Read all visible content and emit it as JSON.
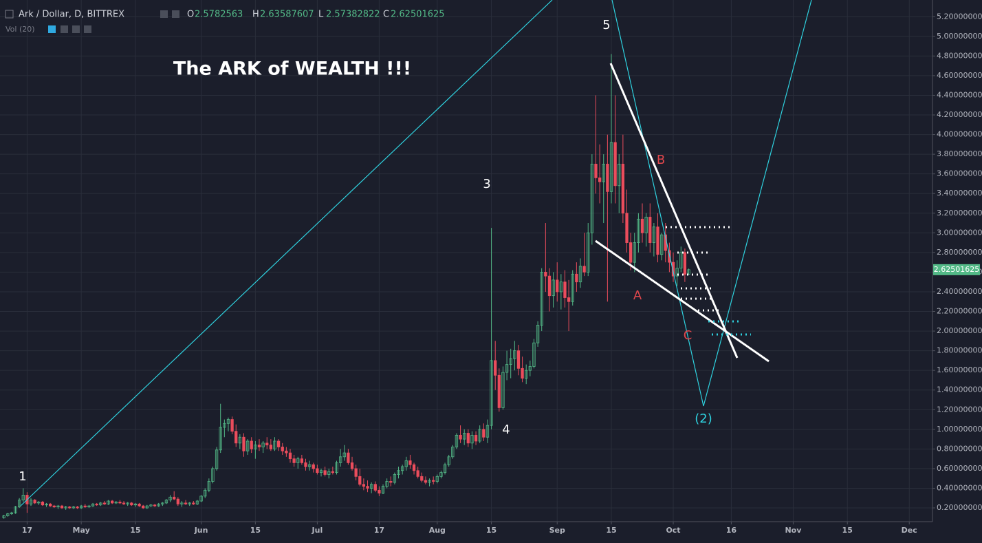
{
  "chart_data": {
    "type": "candlestick",
    "symbol": "Ark / Dollar, D, BITTREX",
    "ohlc_labels": [
      "O",
      "H",
      "L",
      "C"
    ],
    "indicator": "Vol (20)",
    "title": "The ARK of WEALTH !!!",
    "annotations": [
      "1",
      "3",
      "4",
      "5",
      "A",
      "B",
      "C",
      "(2)"
    ],
    "up_color": "#53b987",
    "down_color": "#eb4d5c",
    "xlim": [
      "04-10",
      "12-07"
    ],
    "xticks": [
      {
        "value": "04-17",
        "label": "17"
      },
      {
        "value": "05-01",
        "label": "May"
      },
      {
        "value": "05-15",
        "label": "15"
      },
      {
        "value": "06-01",
        "label": "Jun"
      },
      {
        "value": "06-15",
        "label": "15"
      },
      {
        "value": "07-01",
        "label": "Jul"
      },
      {
        "value": "07-17",
        "label": "17"
      },
      {
        "value": "08-01",
        "label": "Aug"
      },
      {
        "value": "08-15",
        "label": "15"
      },
      {
        "value": "09-01",
        "label": "Sep"
      },
      {
        "value": "09-15",
        "label": "15"
      },
      {
        "value": "10-01",
        "label": "Oct"
      },
      {
        "value": "10-16",
        "label": "16"
      },
      {
        "value": "11-01",
        "label": "Nov"
      },
      {
        "value": "11-15",
        "label": "15"
      },
      {
        "value": "12-01",
        "label": "Dec"
      }
    ],
    "ylim": [
      0.06,
      5.37
    ],
    "yticks": [
      {
        "value": 0.2,
        "label": "0.20000000"
      },
      {
        "value": 0.4,
        "label": "0.40000000"
      },
      {
        "value": 0.6,
        "label": "0.60000000"
      },
      {
        "value": 0.8,
        "label": "0.80000000"
      },
      {
        "value": 1.0,
        "label": "1.00000000"
      },
      {
        "value": 1.2,
        "label": "1.20000000"
      },
      {
        "value": 1.4,
        "label": "1.40000000"
      },
      {
        "value": 1.6,
        "label": "1.60000000"
      },
      {
        "value": 1.8,
        "label": "1.80000000"
      },
      {
        "value": 2.0,
        "label": "2.00000000"
      },
      {
        "value": 2.2,
        "label": "2.20000000"
      },
      {
        "value": 2.4,
        "label": "2.40000000"
      },
      {
        "value": 2.6,
        "label": "2.60000000"
      },
      {
        "value": 2.8,
        "label": "2.80000000"
      },
      {
        "value": 3.0,
        "label": "3.00000000"
      },
      {
        "value": 3.2,
        "label": "3.20000000"
      },
      {
        "value": 3.4,
        "label": "3.40000000"
      },
      {
        "value": 3.6,
        "label": "3.60000000"
      },
      {
        "value": 3.8,
        "label": "3.80000000"
      },
      {
        "value": 4.0,
        "label": "4.00000000"
      },
      {
        "value": 4.2,
        "label": "4.20000000"
      },
      {
        "value": 4.4,
        "label": "4.40000000"
      },
      {
        "value": 4.6,
        "label": "4.60000000"
      },
      {
        "value": 4.8,
        "label": "4.80000000"
      },
      {
        "value": 5.0,
        "label": "5.00000000"
      },
      {
        "value": 5.2,
        "label": "5.20000000"
      }
    ],
    "grid": true,
    "x": [
      "04-11",
      "04-12",
      "04-13",
      "04-14",
      "04-15",
      "04-16",
      "04-17",
      "04-18",
      "04-19",
      "04-20",
      "04-21",
      "04-22",
      "04-23",
      "04-24",
      "04-25",
      "04-26",
      "04-27",
      "04-28",
      "04-29",
      "04-30",
      "05-01",
      "05-02",
      "05-03",
      "05-04",
      "05-05",
      "05-06",
      "05-07",
      "05-08",
      "05-09",
      "05-10",
      "05-11",
      "05-12",
      "05-13",
      "05-14",
      "05-15",
      "05-16",
      "05-17",
      "05-18",
      "05-19",
      "05-20",
      "05-21",
      "05-22",
      "05-23",
      "05-24",
      "05-25",
      "05-26",
      "05-27",
      "05-28",
      "05-29",
      "05-30",
      "05-31",
      "06-01",
      "06-02",
      "06-03",
      "06-04",
      "06-05",
      "06-06",
      "06-07",
      "06-08",
      "06-09",
      "06-10",
      "06-11",
      "06-12",
      "06-13",
      "06-14",
      "06-15",
      "06-16",
      "06-17",
      "06-18",
      "06-19",
      "06-20",
      "06-21",
      "06-22",
      "06-23",
      "06-24",
      "06-25",
      "06-26",
      "06-27",
      "06-28",
      "06-29",
      "06-30",
      "07-01",
      "07-02",
      "07-03",
      "07-04",
      "07-05",
      "07-06",
      "07-07",
      "07-08",
      "07-09",
      "07-10",
      "07-11",
      "07-12",
      "07-13",
      "07-14",
      "07-15",
      "07-16",
      "07-17",
      "07-18",
      "07-19",
      "07-20",
      "07-21",
      "07-22",
      "07-23",
      "07-24",
      "07-25",
      "07-26",
      "07-27",
      "07-28",
      "07-29",
      "07-30",
      "07-31",
      "08-01",
      "08-02",
      "08-03",
      "08-04",
      "08-05",
      "08-06",
      "08-07",
      "08-08",
      "08-09",
      "08-10",
      "08-11",
      "08-12",
      "08-13",
      "08-14",
      "08-15",
      "08-16",
      "08-17",
      "08-18",
      "08-19",
      "08-20",
      "08-21",
      "08-22",
      "08-23",
      "08-24",
      "08-25",
      "08-26",
      "08-27",
      "08-28",
      "08-29",
      "08-30",
      "08-31",
      "09-01",
      "09-02",
      "09-03",
      "09-04",
      "09-05",
      "09-06",
      "09-07",
      "09-08",
      "09-09",
      "09-10",
      "09-11",
      "09-12",
      "09-13",
      "09-14",
      "09-15",
      "09-16",
      "09-17",
      "09-18",
      "09-19",
      "09-20",
      "09-21",
      "09-22",
      "09-23",
      "09-24",
      "09-25",
      "09-26",
      "09-27",
      "09-28",
      "09-29",
      "09-30",
      "10-01",
      "10-02",
      "10-03",
      "10-04",
      "10-05"
    ],
    "ohlc": [
      [
        0.1,
        0.13,
        0.09,
        0.12
      ],
      [
        0.12,
        0.15,
        0.11,
        0.14
      ],
      [
        0.14,
        0.16,
        0.13,
        0.15
      ],
      [
        0.15,
        0.22,
        0.14,
        0.21
      ],
      [
        0.21,
        0.3,
        0.2,
        0.28
      ],
      [
        0.28,
        0.4,
        0.26,
        0.33
      ],
      [
        0.33,
        0.36,
        0.15,
        0.24
      ],
      [
        0.24,
        0.3,
        0.22,
        0.28
      ],
      [
        0.28,
        0.29,
        0.24,
        0.25
      ],
      [
        0.25,
        0.27,
        0.23,
        0.26
      ],
      [
        0.26,
        0.27,
        0.22,
        0.23
      ],
      [
        0.23,
        0.25,
        0.21,
        0.24
      ],
      [
        0.24,
        0.25,
        0.21,
        0.22
      ],
      [
        0.22,
        0.23,
        0.2,
        0.21
      ],
      [
        0.21,
        0.23,
        0.19,
        0.22
      ],
      [
        0.22,
        0.23,
        0.19,
        0.2
      ],
      [
        0.2,
        0.22,
        0.18,
        0.21
      ],
      [
        0.21,
        0.22,
        0.19,
        0.2
      ],
      [
        0.2,
        0.22,
        0.19,
        0.21
      ],
      [
        0.21,
        0.22,
        0.19,
        0.2
      ],
      [
        0.2,
        0.23,
        0.19,
        0.22
      ],
      [
        0.22,
        0.24,
        0.2,
        0.21
      ],
      [
        0.21,
        0.23,
        0.2,
        0.22
      ],
      [
        0.22,
        0.25,
        0.21,
        0.24
      ],
      [
        0.24,
        0.25,
        0.22,
        0.23
      ],
      [
        0.23,
        0.26,
        0.22,
        0.25
      ],
      [
        0.25,
        0.27,
        0.23,
        0.24
      ],
      [
        0.24,
        0.28,
        0.23,
        0.27
      ],
      [
        0.27,
        0.28,
        0.24,
        0.25
      ],
      [
        0.25,
        0.27,
        0.24,
        0.26
      ],
      [
        0.26,
        0.28,
        0.24,
        0.25
      ],
      [
        0.25,
        0.27,
        0.23,
        0.24
      ],
      [
        0.24,
        0.26,
        0.22,
        0.25
      ],
      [
        0.25,
        0.26,
        0.22,
        0.23
      ],
      [
        0.23,
        0.25,
        0.21,
        0.24
      ],
      [
        0.24,
        0.25,
        0.21,
        0.22
      ],
      [
        0.22,
        0.23,
        0.19,
        0.2
      ],
      [
        0.2,
        0.23,
        0.19,
        0.22
      ],
      [
        0.22,
        0.24,
        0.21,
        0.23
      ],
      [
        0.23,
        0.24,
        0.21,
        0.22
      ],
      [
        0.22,
        0.25,
        0.21,
        0.24
      ],
      [
        0.24,
        0.26,
        0.22,
        0.25
      ],
      [
        0.25,
        0.29,
        0.24,
        0.28
      ],
      [
        0.28,
        0.33,
        0.26,
        0.31
      ],
      [
        0.31,
        0.37,
        0.28,
        0.29
      ],
      [
        0.29,
        0.31,
        0.22,
        0.24
      ],
      [
        0.24,
        0.27,
        0.21,
        0.25
      ],
      [
        0.25,
        0.28,
        0.23,
        0.24
      ],
      [
        0.24,
        0.26,
        0.22,
        0.25
      ],
      [
        0.25,
        0.27,
        0.23,
        0.24
      ],
      [
        0.24,
        0.28,
        0.23,
        0.27
      ],
      [
        0.27,
        0.33,
        0.26,
        0.32
      ],
      [
        0.32,
        0.4,
        0.3,
        0.38
      ],
      [
        0.38,
        0.5,
        0.36,
        0.47
      ],
      [
        0.47,
        0.62,
        0.45,
        0.6
      ],
      [
        0.6,
        0.82,
        0.58,
        0.79
      ],
      [
        0.79,
        1.26,
        0.76,
        1.02
      ],
      [
        1.02,
        1.1,
        0.92,
        1.06
      ],
      [
        1.06,
        1.12,
        0.98,
        1.1
      ],
      [
        1.1,
        1.13,
        0.95,
        0.98
      ],
      [
        0.98,
        1.05,
        0.82,
        0.86
      ],
      [
        0.86,
        0.95,
        0.8,
        0.92
      ],
      [
        0.92,
        0.96,
        0.72,
        0.78
      ],
      [
        0.78,
        0.9,
        0.74,
        0.88
      ],
      [
        0.88,
        0.92,
        0.76,
        0.8
      ],
      [
        0.8,
        0.88,
        0.7,
        0.84
      ],
      [
        0.84,
        0.9,
        0.78,
        0.82
      ],
      [
        0.82,
        0.88,
        0.76,
        0.86
      ],
      [
        0.86,
        0.92,
        0.8,
        0.84
      ],
      [
        0.84,
        0.9,
        0.78,
        0.8
      ],
      [
        0.8,
        0.92,
        0.78,
        0.88
      ],
      [
        0.88,
        0.9,
        0.78,
        0.82
      ],
      [
        0.82,
        0.86,
        0.74,
        0.78
      ],
      [
        0.78,
        0.82,
        0.72,
        0.76
      ],
      [
        0.76,
        0.8,
        0.66,
        0.7
      ],
      [
        0.7,
        0.74,
        0.62,
        0.66
      ],
      [
        0.66,
        0.72,
        0.6,
        0.7
      ],
      [
        0.7,
        0.74,
        0.64,
        0.66
      ],
      [
        0.66,
        0.7,
        0.58,
        0.62
      ],
      [
        0.62,
        0.68,
        0.58,
        0.64
      ],
      [
        0.64,
        0.66,
        0.56,
        0.6
      ],
      [
        0.6,
        0.64,
        0.54,
        0.56
      ],
      [
        0.56,
        0.6,
        0.52,
        0.58
      ],
      [
        0.58,
        0.62,
        0.52,
        0.54
      ],
      [
        0.54,
        0.6,
        0.5,
        0.57
      ],
      [
        0.57,
        0.62,
        0.54,
        0.56
      ],
      [
        0.56,
        0.68,
        0.54,
        0.66
      ],
      [
        0.66,
        0.8,
        0.62,
        0.72
      ],
      [
        0.72,
        0.84,
        0.68,
        0.76
      ],
      [
        0.76,
        0.8,
        0.64,
        0.66
      ],
      [
        0.66,
        0.72,
        0.58,
        0.6
      ],
      [
        0.6,
        0.64,
        0.48,
        0.52
      ],
      [
        0.52,
        0.6,
        0.42,
        0.44
      ],
      [
        0.44,
        0.5,
        0.38,
        0.42
      ],
      [
        0.42,
        0.48,
        0.36,
        0.4
      ],
      [
        0.4,
        0.46,
        0.35,
        0.44
      ],
      [
        0.44,
        0.47,
        0.36,
        0.38
      ],
      [
        0.38,
        0.42,
        0.32,
        0.35
      ],
      [
        0.35,
        0.44,
        0.34,
        0.42
      ],
      [
        0.42,
        0.5,
        0.4,
        0.47
      ],
      [
        0.47,
        0.52,
        0.42,
        0.46
      ],
      [
        0.46,
        0.56,
        0.44,
        0.54
      ],
      [
        0.54,
        0.62,
        0.5,
        0.58
      ],
      [
        0.58,
        0.64,
        0.54,
        0.62
      ],
      [
        0.62,
        0.72,
        0.58,
        0.68
      ],
      [
        0.68,
        0.74,
        0.6,
        0.64
      ],
      [
        0.64,
        0.66,
        0.54,
        0.58
      ],
      [
        0.58,
        0.62,
        0.5,
        0.52
      ],
      [
        0.52,
        0.56,
        0.46,
        0.48
      ],
      [
        0.48,
        0.52,
        0.44,
        0.46
      ],
      [
        0.46,
        0.5,
        0.42,
        0.48
      ],
      [
        0.48,
        0.52,
        0.44,
        0.47
      ],
      [
        0.47,
        0.54,
        0.45,
        0.52
      ],
      [
        0.52,
        0.58,
        0.5,
        0.56
      ],
      [
        0.56,
        0.66,
        0.54,
        0.64
      ],
      [
        0.64,
        0.74,
        0.62,
        0.72
      ],
      [
        0.72,
        0.84,
        0.7,
        0.82
      ],
      [
        0.82,
        0.96,
        0.8,
        0.94
      ],
      [
        0.94,
        1.04,
        0.86,
        0.9
      ],
      [
        0.9,
        1.0,
        0.84,
        0.96
      ],
      [
        0.96,
        1.0,
        0.82,
        0.86
      ],
      [
        0.86,
        0.98,
        0.8,
        0.94
      ],
      [
        0.94,
        0.98,
        0.84,
        0.88
      ],
      [
        0.88,
        1.04,
        0.86,
        1.0
      ],
      [
        1.0,
        1.06,
        0.88,
        0.92
      ],
      [
        0.92,
        1.1,
        0.86,
        1.04
      ],
      [
        1.04,
        3.05,
        1.0,
        1.7
      ],
      [
        1.7,
        1.9,
        1.4,
        1.55
      ],
      [
        1.55,
        1.62,
        1.18,
        1.22
      ],
      [
        1.22,
        1.64,
        1.2,
        1.58
      ],
      [
        1.58,
        1.8,
        1.5,
        1.66
      ],
      [
        1.66,
        1.82,
        1.52,
        1.72
      ],
      [
        1.72,
        1.9,
        1.6,
        1.8
      ],
      [
        1.8,
        1.86,
        1.55,
        1.62
      ],
      [
        1.62,
        1.74,
        1.48,
        1.52
      ],
      [
        1.52,
        1.66,
        1.46,
        1.6
      ],
      [
        1.6,
        1.7,
        1.54,
        1.64
      ],
      [
        1.64,
        1.92,
        1.62,
        1.88
      ],
      [
        1.88,
        2.1,
        1.84,
        2.06
      ],
      [
        2.06,
        2.64,
        2.0,
        2.6
      ],
      [
        2.6,
        3.1,
        2.4,
        2.56
      ],
      [
        2.56,
        2.64,
        2.2,
        2.36
      ],
      [
        2.36,
        2.6,
        2.24,
        2.52
      ],
      [
        2.52,
        2.7,
        2.3,
        2.4
      ],
      [
        2.4,
        2.58,
        2.22,
        2.5
      ],
      [
        2.5,
        2.62,
        2.24,
        2.34
      ],
      [
        2.34,
        2.52,
        2.0,
        2.3
      ],
      [
        2.3,
        2.62,
        2.26,
        2.58
      ],
      [
        2.58,
        2.7,
        2.4,
        2.5
      ],
      [
        2.5,
        2.74,
        2.44,
        2.66
      ],
      [
        2.66,
        3.0,
        2.56,
        2.6
      ],
      [
        2.6,
        3.1,
        2.56,
        3.0
      ],
      [
        3.0,
        3.8,
        2.88,
        3.7
      ],
      [
        3.7,
        4.4,
        3.4,
        3.56
      ],
      [
        3.56,
        3.9,
        3.3,
        3.52
      ],
      [
        3.52,
        3.8,
        3.1,
        3.7
      ],
      [
        3.7,
        4.0,
        2.3,
        3.42
      ],
      [
        3.42,
        4.82,
        3.3,
        3.92
      ],
      [
        3.92,
        4.4,
        3.3,
        3.48
      ],
      [
        3.48,
        3.8,
        3.2,
        3.7
      ],
      [
        3.7,
        4.0,
        3.1,
        3.2
      ],
      [
        3.2,
        3.44,
        2.8,
        2.9
      ],
      [
        2.9,
        3.0,
        2.62,
        2.7
      ],
      [
        2.7,
        3.0,
        2.6,
        2.9
      ],
      [
        2.9,
        3.2,
        2.8,
        3.14
      ],
      [
        3.14,
        3.3,
        2.9,
        3.0
      ],
      [
        3.0,
        3.2,
        2.86,
        3.16
      ],
      [
        3.16,
        3.3,
        2.8,
        2.9
      ],
      [
        2.9,
        3.1,
        2.76,
        3.06
      ],
      [
        3.06,
        3.2,
        2.7,
        2.78
      ],
      [
        2.78,
        3.0,
        2.72,
        2.98
      ],
      [
        2.98,
        3.1,
        2.7,
        2.82
      ],
      [
        2.82,
        2.9,
        2.6,
        2.7
      ],
      [
        2.7,
        2.8,
        2.5,
        2.56
      ],
      [
        2.56,
        2.72,
        2.46,
        2.64
      ],
      [
        2.64,
        2.86,
        2.6,
        2.8
      ],
      [
        2.8,
        2.84,
        2.5,
        2.578
      ],
      [
        2.5782563,
        2.63587607,
        2.57382822,
        2.62501625
      ]
    ]
  }
}
